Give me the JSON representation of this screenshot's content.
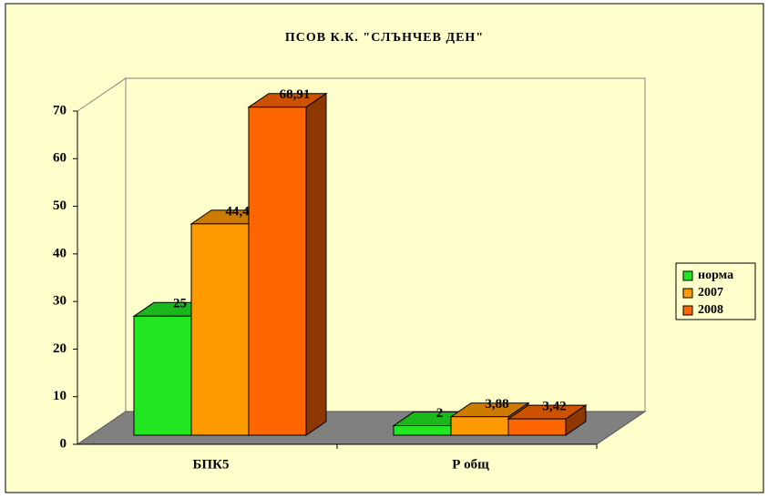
{
  "chart_data": {
    "type": "bar3d",
    "title": "ПСОВ К.К. \"СЛЪНЧЕВ ДЕН\"",
    "categories": [
      "БПК5",
      "Р общ"
    ],
    "series": [
      {
        "name": "норма",
        "color": "#22e622",
        "values": [
          25,
          2
        ],
        "value_labels": [
          "25",
          "2"
        ]
      },
      {
        "name": "2007",
        "color": "#ff9900",
        "values": [
          44.4,
          3.88
        ],
        "value_labels": [
          "44,4",
          "3,88"
        ]
      },
      {
        "name": "2008",
        "color": "#ff6600",
        "values": [
          68.91,
          3.42
        ],
        "value_labels": [
          "68,91",
          "3,42"
        ]
      }
    ],
    "ylim": [
      0,
      70
    ],
    "yticks": [
      0,
      10,
      20,
      30,
      40,
      50,
      60,
      70
    ],
    "legend": "right"
  }
}
